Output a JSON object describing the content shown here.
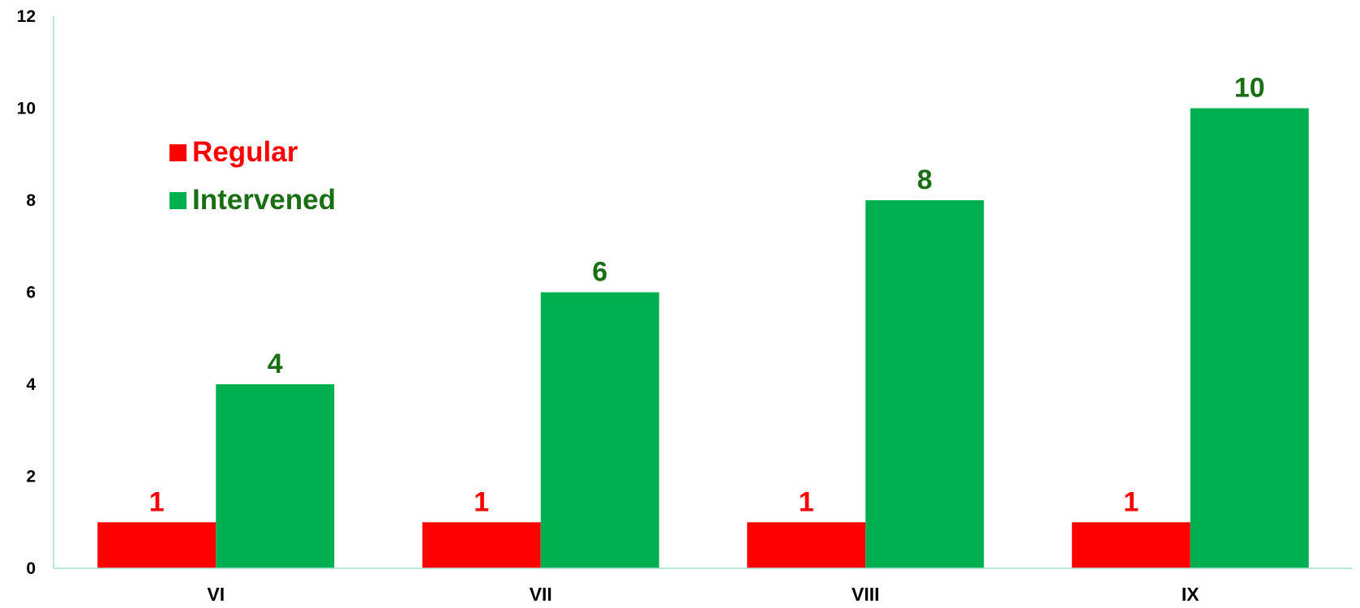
{
  "chart_data": {
    "type": "bar",
    "title": "",
    "xlabel": "",
    "ylabel": "",
    "categories": [
      "VI",
      "VII",
      "VIII",
      "IX"
    ],
    "series": [
      {
        "name": "Regular",
        "values": [
          1,
          1,
          1,
          1
        ],
        "color": "#ff0000",
        "label_color": "#ff0000"
      },
      {
        "name": "Intervened",
        "values": [
          4,
          6,
          8,
          10
        ],
        "color": "#00b050",
        "label_color": "#1a6f14"
      }
    ],
    "ylim": [
      0,
      12
    ],
    "y_ticks": [
      "0",
      "2",
      "4",
      "6",
      "8",
      "10",
      "12"
    ],
    "grid": false,
    "legend_position": "top-left",
    "axis_color": "#a8e0cf"
  }
}
